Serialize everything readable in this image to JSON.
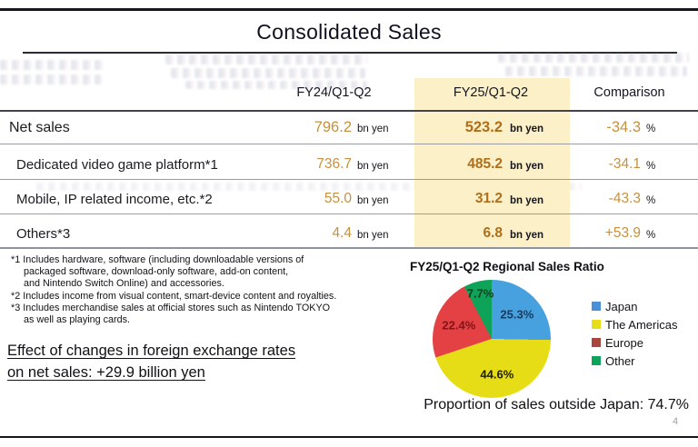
{
  "slide": {
    "title": "Consolidated Sales",
    "page_number": "4"
  },
  "table": {
    "headers": {
      "fy24": "FY24/Q1-Q2",
      "fy25": "FY25/Q1-Q2",
      "comparison": "Comparison"
    },
    "unit": "bn yen",
    "percent_sign": "%",
    "rows": [
      {
        "label": "Net sales",
        "fy24": "796.2",
        "fy25": "523.2",
        "comparison": "-34.3"
      },
      {
        "label": "Dedicated video game platform*1",
        "fy24": "736.7",
        "fy25": "485.2",
        "comparison": "-34.1"
      },
      {
        "label": "Mobile, IP related income, etc.*2",
        "fy24": "55.0",
        "fy25": "31.2",
        "comparison": "-43.3"
      },
      {
        "label": "Others*3",
        "fy24": "4.4",
        "fy25": "6.8",
        "comparison": "+53.9"
      }
    ],
    "highlight_color": "#FBF0C8",
    "value_color": "#C6913F",
    "value_color_bold": "#AE6E1A"
  },
  "footnotes": {
    "lines": [
      "*1 Includes hardware, software (including downloadable versions of",
      "packaged software, download-only software, add-on content,",
      "and Nintendo Switch Online) and accessories.",
      "*2 Includes income from visual content, smart-device content and royalties.",
      "*3 Includes merchandise sales at official stores such as Nintendo TOKYO",
      "as well as playing cards."
    ]
  },
  "fx_note": {
    "line1": "Effect of changes in foreign exchange rates",
    "line2": "on net sales: +29.9 billion yen"
  },
  "chart_data": {
    "type": "pie",
    "title": "FY25/Q1-Q2 Regional Sales Ratio",
    "labels": [
      "Japan",
      "The Americas",
      "Europe",
      "Other"
    ],
    "values": [
      25.3,
      44.6,
      22.4,
      7.7
    ],
    "slice_colors": [
      "#47A1DE",
      "#E7DD16",
      "#E34143",
      "#0DA45A"
    ],
    "label_colors": [
      "#1B3A5C",
      "#1f1e05",
      "#801418",
      "#123B1E"
    ],
    "legend_colors": [
      "#4A90D8",
      "#E7DD16",
      "#A8453C",
      "#0DA45A"
    ],
    "legend_position": "right",
    "start_angle_deg": 0,
    "direction": "clockwise",
    "value_suffix": "%"
  },
  "outside_japan_note": "Proportion of sales outside Japan: 74.7%"
}
